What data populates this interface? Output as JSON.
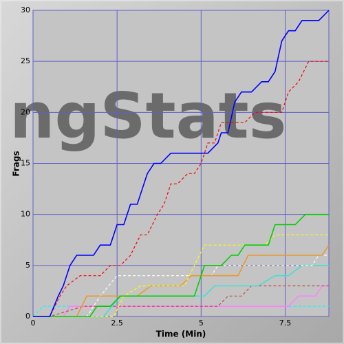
{
  "chart_data": {
    "type": "line",
    "watermark": "ngStats",
    "xlabel": "Time (Min)",
    "ylabel": "Frags",
    "xlim": [
      0,
      8.8
    ],
    "ylim": [
      0,
      30
    ],
    "xticks": [
      0,
      2.5,
      5,
      7.5
    ],
    "yticks": [
      0,
      5,
      10,
      15,
      20,
      25,
      30
    ],
    "grid": true,
    "grid_color": "#6060c8",
    "series": [
      {
        "color": "#0000ff",
        "dashed": false,
        "x": [
          0,
          0.5,
          0.75,
          0.9,
          1.1,
          1.3,
          1.8,
          2,
          2.3,
          2.5,
          2.7,
          2.9,
          3.1,
          3.4,
          3.6,
          3.8,
          4.1,
          5.2,
          5.5,
          5.6,
          5.8,
          6.0,
          6.2,
          6.5,
          6.8,
          7.0,
          7.2,
          7.4,
          7.6,
          7.8,
          8.0,
          8.5,
          8.8
        ],
        "values": [
          0,
          0,
          2,
          3,
          5,
          6,
          6,
          7,
          7,
          9,
          9,
          11,
          11,
          14,
          15,
          15,
          16,
          16,
          17,
          18,
          18,
          21,
          22,
          22,
          23,
          23,
          24,
          27,
          28,
          28,
          29,
          29,
          30
        ]
      },
      {
        "color": "#ff0000",
        "dashed": true,
        "x": [
          0,
          0.5,
          0.8,
          1.0,
          1.4,
          2.0,
          2.3,
          2.6,
          2.9,
          3.2,
          3.4,
          3.7,
          3.9,
          4.1,
          4.3,
          4.6,
          4.8,
          5.0,
          5.2,
          5.4,
          5.6,
          6.3,
          6.6,
          7.4,
          7.6,
          7.9,
          8.2,
          8.8
        ],
        "values": [
          0,
          0,
          2,
          3,
          4,
          4,
          5,
          5,
          6,
          8,
          8,
          10,
          11,
          13,
          13,
          14,
          14,
          15,
          17,
          17,
          19,
          19,
          20,
          20,
          22,
          23,
          25,
          25
        ]
      },
      {
        "color": "#00d000",
        "dashed": false,
        "x": [
          0,
          1.7,
          1.9,
          2.3,
          2.6,
          4.8,
          5.1,
          5.6,
          5.9,
          6.1,
          6.3,
          7.0,
          7.2,
          7.8,
          8.1,
          8.8
        ],
        "values": [
          0,
          0,
          1,
          1,
          2,
          2,
          5,
          5,
          6,
          6,
          7,
          7,
          9,
          9,
          10,
          10
        ]
      },
      {
        "color": "#ffff00",
        "dashed": true,
        "x": [
          0,
          2.4,
          2.7,
          3.2,
          4.5,
          4.8,
          5.1,
          6.9,
          7.2,
          8.8
        ],
        "values": [
          0,
          0,
          2,
          3,
          3,
          5,
          7,
          7,
          8,
          8
        ]
      },
      {
        "color": "#e89a30",
        "dashed": false,
        "x": [
          0,
          1.3,
          1.6,
          3.1,
          3.5,
          4.4,
          4.7,
          6.1,
          6.4,
          8.6,
          8.8
        ],
        "values": [
          0,
          0,
          2,
          2,
          3,
          3,
          4,
          4,
          6,
          6,
          7
        ]
      },
      {
        "color": "#ffffff",
        "dashed": true,
        "x": [
          0,
          1.6,
          2.0,
          2.5,
          5.3,
          5.5,
          8.3,
          8.5,
          8.8
        ],
        "values": [
          0,
          0,
          2,
          4,
          4,
          5,
          5,
          6,
          6
        ]
      },
      {
        "color": "#40e0d0",
        "dashed": false,
        "x": [
          0,
          2.1,
          2.6,
          5.1,
          5.4,
          6.7,
          7.2,
          7.6,
          8.0,
          8.8
        ],
        "values": [
          0,
          0,
          2,
          2,
          3,
          3,
          4,
          4,
          5,
          5
        ]
      },
      {
        "color": "#c04848",
        "dashed": true,
        "x": [
          0,
          0.5,
          1.5,
          5.5,
          5.8,
          6.2,
          6.5,
          8.8
        ],
        "values": [
          0,
          0,
          1,
          1,
          2,
          2,
          3,
          3
        ]
      },
      {
        "color": "#ff80ff",
        "dashed": false,
        "x": [
          0,
          0.9,
          1.1,
          7.6,
          7.9,
          8.4,
          8.6,
          8.8
        ],
        "values": [
          0,
          0,
          1,
          1,
          2,
          2,
          3,
          3
        ]
      },
      {
        "color": "#00ffff",
        "dashed": true,
        "x": [
          0,
          0.3,
          8.8
        ],
        "values": [
          0,
          1,
          1
        ]
      }
    ]
  }
}
